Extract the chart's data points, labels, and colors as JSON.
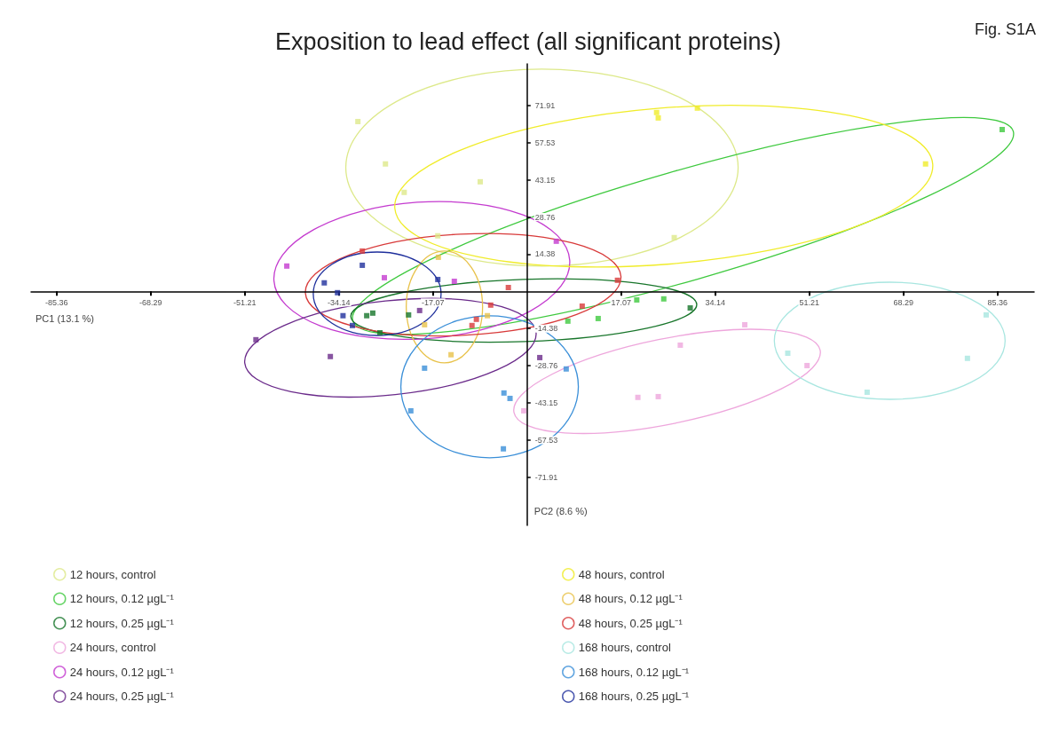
{
  "chart_data": {
    "type": "scatter",
    "title": "Exposition to lead effect (all significant proteins)",
    "annotations": [
      "Fig. S1A"
    ],
    "xlabel": "PC1 (13.1 %)",
    "ylabel": "PC2 (8.6 %)",
    "xlim": [
      -90,
      92
    ],
    "ylim": [
      -90.5,
      88
    ],
    "xticks": [
      -85.36,
      -68.29,
      -51.21,
      -34.14,
      -17.07,
      17.07,
      34.14,
      51.21,
      68.29,
      85.36
    ],
    "yticks": [
      -71.91,
      -57.53,
      -43.15,
      -28.76,
      -14.38,
      14.38,
      28.76,
      43.15,
      57.53,
      71.91
    ],
    "grid": false,
    "legend": "bottom",
    "marker": "square",
    "series": [
      {
        "name": "12 hours, control",
        "color": "#dde98a",
        "x": [
          -30.7,
          -25.7,
          -8.5,
          -22.3,
          -16.2,
          26.7
        ],
        "values": [
          65.7,
          49.3,
          42.4,
          38.3,
          21.5,
          20.8
        ]
      },
      {
        "name": "12 hours, 0.12 µgL⁻¹",
        "color": "#3ec93e",
        "x": [
          86.2,
          7.4,
          12.9,
          19.9,
          24.8
        ],
        "values": [
          62.6,
          -11.5,
          -10.5,
          -3.3,
          -2.9
        ]
      },
      {
        "name": "12 hours, 0.25 µgL⁻¹",
        "color": "#17752a",
        "x": [
          29.6,
          -29.1,
          -28.0,
          -21.5,
          -26.7
        ],
        "values": [
          -6.4,
          -9.4,
          -8.4,
          -9.1,
          -16.0
        ]
      },
      {
        "name": "24 hours, control",
        "color": "#eea6dc",
        "x": [
          27.8,
          20.1,
          23.8,
          39.5,
          50.8,
          -0.6
        ],
        "values": [
          -20.8,
          -41.0,
          -40.7,
          -12.9,
          -28.7,
          -46.2
        ]
      },
      {
        "name": "24 hours, 0.12 µgL⁻¹",
        "color": "#c43bcf",
        "x": [
          -43.6,
          -25.9,
          5.3,
          -13.2
        ],
        "values": [
          9.8,
          5.3,
          19.4,
          3.9
        ]
      },
      {
        "name": "24 hours, 0.25 µgL⁻¹",
        "color": "#6a2a8a",
        "x": [
          -49.2,
          -35.7,
          -19.5,
          2.3
        ],
        "values": [
          -18.7,
          -25.2,
          -7.4,
          -25.6
        ]
      },
      {
        "name": "48 hours, control",
        "color": "#f0ec2a",
        "x": [
          23.5,
          23.8,
          30.9,
          72.3
        ],
        "values": [
          69.2,
          67.1,
          70.9,
          49.3
        ]
      },
      {
        "name": "48 hours, 0.12 µgL⁻¹",
        "color": "#e8c24a",
        "x": [
          -13.8,
          -18.6,
          -7.2,
          -16.1
        ],
        "values": [
          -24.5,
          -12.9,
          -9.4,
          13.2
        ]
      },
      {
        "name": "48 hours, 0.25 µgL⁻¹",
        "color": "#d83a3a",
        "x": [
          -29.9,
          -3.4,
          -6.6,
          -9.2,
          -10.0,
          10.0,
          16.4
        ],
        "values": [
          15.6,
          1.5,
          -5.3,
          -10.8,
          -13.2,
          -5.7,
          4.3
        ]
      },
      {
        "name": "168 hours, control",
        "color": "#a8e6e0",
        "x": [
          83.3,
          79.9,
          61.7,
          47.3
        ],
        "values": [
          -9.1,
          -25.9,
          -39.0,
          -23.9
        ]
      },
      {
        "name": "168 hours, 0.12 µgL⁻¹",
        "color": "#3a8fd8",
        "x": [
          -18.6,
          -21.1,
          -4.2,
          -3.1,
          7.1,
          -4.3
        ],
        "values": [
          -29.7,
          -46.2,
          -39.3,
          -41.4,
          -30.0,
          -60.9
        ]
      },
      {
        "name": "168 hours, 0.25 µgL⁻¹",
        "color": "#1f2f9c",
        "x": [
          -36.8,
          -29.9,
          -16.2,
          -33.4,
          -34.4,
          -31.7
        ],
        "values": [
          3.3,
          10.1,
          4.6,
          -9.4,
          -0.5,
          -13.2
        ]
      }
    ]
  }
}
